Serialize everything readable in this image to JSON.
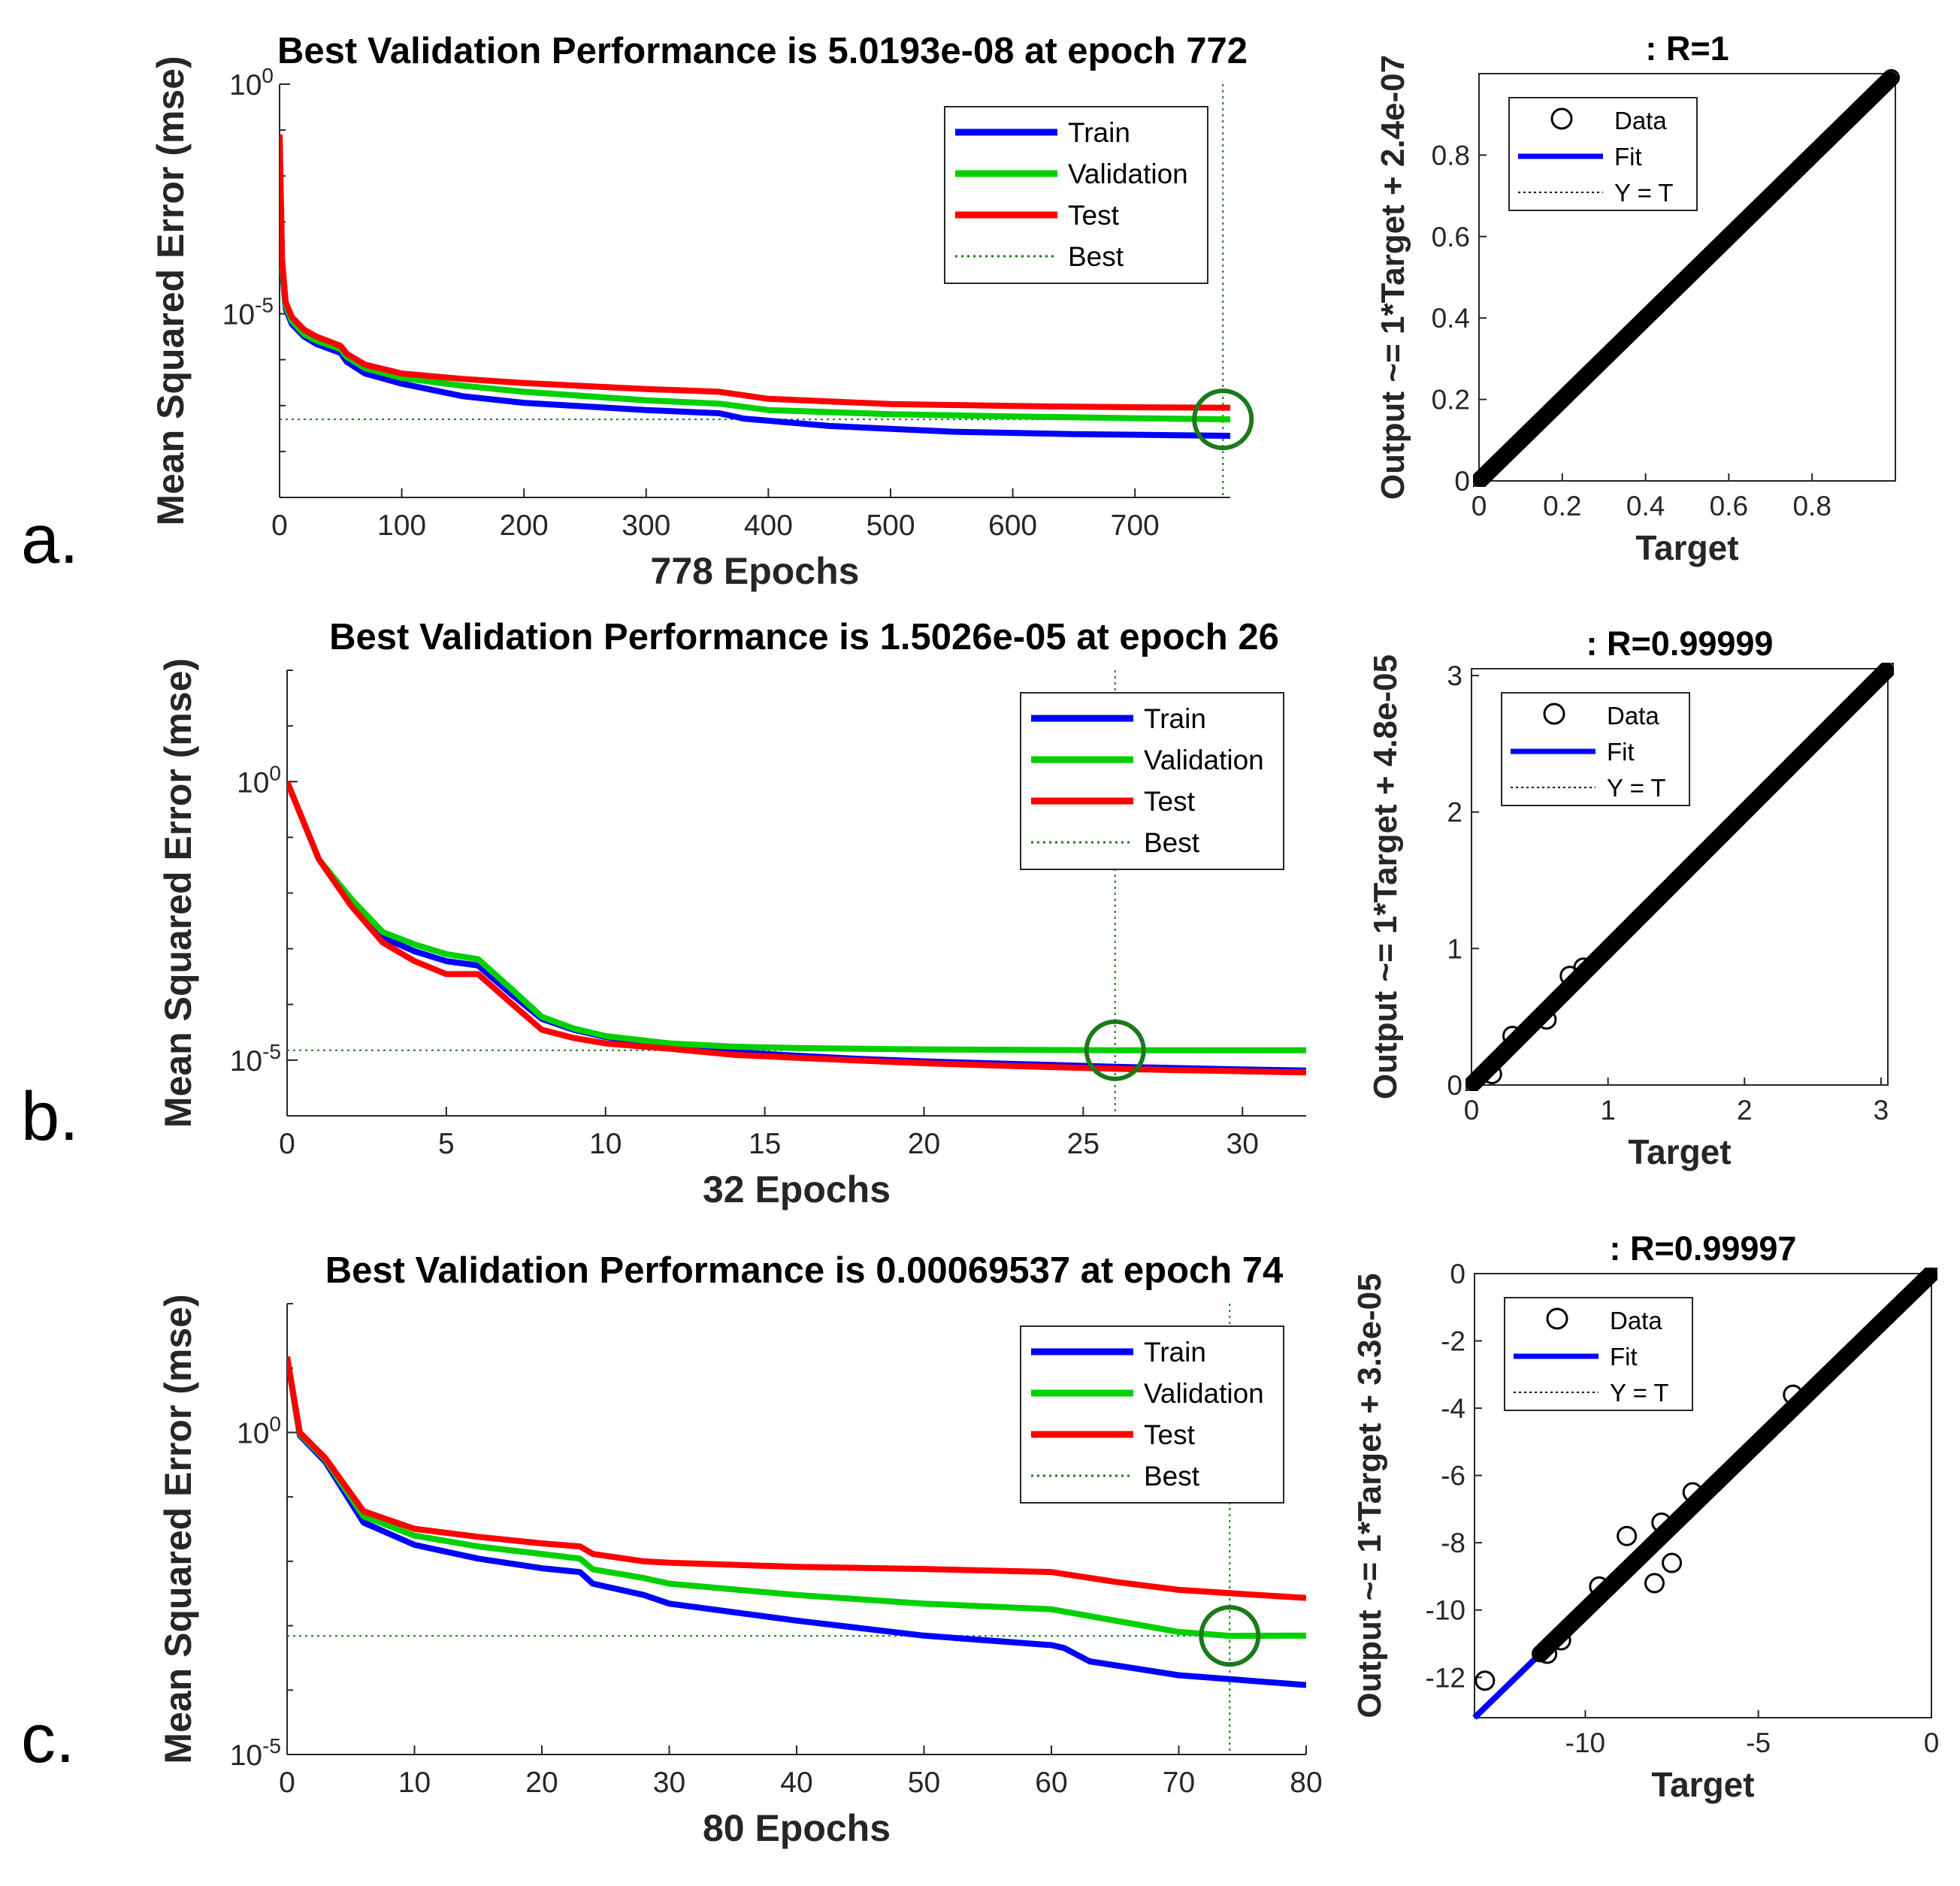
{
  "panel_labels": [
    "a.",
    "b.",
    "c."
  ],
  "chart_data": [
    {
      "type": "line",
      "title": "Best Validation Performance is 5.0193e-08 at epoch 772",
      "xlabel": "778 Epochs",
      "ylabel": "Mean Squared Error  (mse)",
      "yscale": "log",
      "xlim": [
        0,
        778
      ],
      "ylim": [
        1e-09,
        1
      ],
      "xticks": [
        0,
        100,
        200,
        300,
        400,
        500,
        600,
        700
      ],
      "yticks": [
        {
          "value": 1,
          "label": "10^0"
        },
        {
          "value": 1e-05,
          "label": "10^-5"
        }
      ],
      "legend_position": "top-right",
      "legend": [
        "Train",
        "Validation",
        "Test",
        "Best"
      ],
      "series": [
        {
          "name": "Train",
          "color": "#0000ff",
          "points": [
            [
              0,
              0.05
            ],
            [
              2,
              0.0001
            ],
            [
              5,
              1.3e-05
            ],
            [
              10,
              6e-06
            ],
            [
              20,
              3.2e-06
            ],
            [
              30,
              2.2e-06
            ],
            [
              50,
              1.4e-06
            ],
            [
              55,
              9e-07
            ],
            [
              70,
              5e-07
            ],
            [
              100,
              3e-07
            ],
            [
              150,
              1.6e-07
            ],
            [
              200,
              1.15e-07
            ],
            [
              300,
              8e-08
            ],
            [
              360,
              6.8e-08
            ],
            [
              380,
              5.2e-08
            ],
            [
              450,
              3.6e-08
            ],
            [
              550,
              2.7e-08
            ],
            [
              650,
              2.4e-08
            ],
            [
              778,
              2.2e-08
            ]
          ]
        },
        {
          "name": "Validation",
          "color": "#00d000",
          "points": [
            [
              0,
              0.06
            ],
            [
              2,
              0.00012
            ],
            [
              5,
              1.5e-05
            ],
            [
              10,
              7e-06
            ],
            [
              20,
              3.6e-06
            ],
            [
              30,
              2.6e-06
            ],
            [
              50,
              1.7e-06
            ],
            [
              55,
              1.15e-06
            ],
            [
              70,
              6.5e-07
            ],
            [
              100,
              4e-07
            ],
            [
              150,
              2.7e-07
            ],
            [
              200,
              2e-07
            ],
            [
              300,
              1.3e-07
            ],
            [
              360,
              1.1e-07
            ],
            [
              400,
              8e-08
            ],
            [
              500,
              6.5e-08
            ],
            [
              600,
              5.8e-08
            ],
            [
              700,
              5.3e-08
            ],
            [
              778,
              5.02e-08
            ]
          ]
        },
        {
          "name": "Test",
          "color": "#ff0000",
          "points": [
            [
              0,
              0.08
            ],
            [
              2,
              0.00015
            ],
            [
              5,
              1.8e-05
            ],
            [
              10,
              8.5e-06
            ],
            [
              20,
              4.5e-06
            ],
            [
              30,
              3.2e-06
            ],
            [
              50,
              2e-06
            ],
            [
              55,
              1.35e-06
            ],
            [
              70,
              7.8e-07
            ],
            [
              100,
              5e-07
            ],
            [
              150,
              3.8e-07
            ],
            [
              200,
              3.1e-07
            ],
            [
              300,
              2.3e-07
            ],
            [
              360,
              2e-07
            ],
            [
              400,
              1.4e-07
            ],
            [
              500,
              1.08e-07
            ],
            [
              600,
              9.8e-08
            ],
            [
              700,
              9.2e-08
            ],
            [
              778,
              9e-08
            ]
          ]
        }
      ],
      "best": {
        "epoch": 772,
        "value": 5.0193e-08
      }
    },
    {
      "type": "scatter",
      "title": ": R=1",
      "xlabel": "Target",
      "ylabel": "Output ~= 1*Target + 2.4e-07",
      "xlim": [
        0,
        1
      ],
      "ylim": [
        0,
        1
      ],
      "xticks": [
        0,
        0.2,
        0.4,
        0.6,
        0.8
      ],
      "xtick_labels": [
        "0",
        "0.2",
        "0.4",
        "0.6",
        "0.8"
      ],
      "yticks": [
        0,
        0.2,
        0.4,
        0.6,
        0.8
      ],
      "ytick_labels": [
        "0",
        "0.2",
        "0.4",
        "0.6",
        "0.8"
      ],
      "legend_position": "top-left",
      "legend": [
        "Data",
        "Fit",
        "Y = T"
      ],
      "fit": {
        "slope": 1,
        "intercept": 2.4e-07
      },
      "data_range": [
        0,
        0.99
      ],
      "outliers": []
    },
    {
      "type": "line",
      "title": "Best Validation Performance is 1.5026e-05 at epoch 26",
      "xlabel": "32 Epochs",
      "ylabel": "Mean Squared Error  (mse)",
      "yscale": "log",
      "xlim": [
        0,
        32
      ],
      "ylim": [
        1e-06,
        100
      ],
      "xticks": [
        0,
        5,
        10,
        15,
        20,
        25,
        30
      ],
      "yticks": [
        {
          "value": 1,
          "label": "10^0"
        },
        {
          "value": 1e-05,
          "label": "10^-5"
        }
      ],
      "legend_position": "top-right",
      "legend": [
        "Train",
        "Validation",
        "Test",
        "Best"
      ],
      "series": [
        {
          "name": "Train",
          "color": "#0000ff",
          "points": [
            [
              0,
              1
            ],
            [
              1,
              0.04
            ],
            [
              2,
              0.007
            ],
            [
              3,
              0.0016
            ],
            [
              4,
              0.0009
            ],
            [
              5,
              0.0006
            ],
            [
              6,
              0.0005
            ],
            [
              7,
              0.00016
            ],
            [
              8,
              5.5e-05
            ],
            [
              9,
              3.5e-05
            ],
            [
              10,
              2.6e-05
            ],
            [
              12,
              1.8e-05
            ],
            [
              14,
              1.4e-05
            ],
            [
              16,
              1.2e-05
            ],
            [
              18,
              1.05e-05
            ],
            [
              20,
              9.5e-06
            ],
            [
              22,
              8.8e-06
            ],
            [
              24,
              8.2e-06
            ],
            [
              26,
              7.6e-06
            ],
            [
              28,
              7.2e-06
            ],
            [
              30,
              6.8e-06
            ],
            [
              32,
              6.5e-06
            ]
          ]
        },
        {
          "name": "Validation",
          "color": "#00d000",
          "points": [
            [
              0,
              1
            ],
            [
              1,
              0.04
            ],
            [
              2,
              0.008
            ],
            [
              3,
              0.002
            ],
            [
              4,
              0.0012
            ],
            [
              5,
              0.0008
            ],
            [
              6,
              0.00065
            ],
            [
              7,
              0.0002
            ],
            [
              8,
              6e-05
            ],
            [
              9,
              3.7e-05
            ],
            [
              10,
              2.7e-05
            ],
            [
              12,
              2e-05
            ],
            [
              14,
              1.75e-05
            ],
            [
              16,
              1.65e-05
            ],
            [
              18,
              1.6e-05
            ],
            [
              20,
              1.56e-05
            ],
            [
              22,
              1.54e-05
            ],
            [
              24,
              1.52e-05
            ],
            [
              26,
              1.5026e-05
            ],
            [
              28,
              1.5e-05
            ],
            [
              30,
              1.5e-05
            ],
            [
              32,
              1.5e-05
            ]
          ]
        },
        {
          "name": "Test",
          "color": "#ff0000",
          "points": [
            [
              0,
              1
            ],
            [
              1,
              0.04
            ],
            [
              2,
              0.006
            ],
            [
              3,
              0.0013
            ],
            [
              4,
              0.0006
            ],
            [
              5,
              0.00035
            ],
            [
              6,
              0.00035
            ],
            [
              7,
              0.00011
            ],
            [
              8,
              3.5e-05
            ],
            [
              9,
              2.5e-05
            ],
            [
              10,
              2e-05
            ],
            [
              12,
              1.6e-05
            ],
            [
              14,
              1.25e-05
            ],
            [
              16,
              1.1e-05
            ],
            [
              18,
              9.8e-06
            ],
            [
              20,
              8.8e-06
            ],
            [
              22,
              8.1e-06
            ],
            [
              24,
              7.5e-06
            ],
            [
              26,
              7e-06
            ],
            [
              28,
              6.6e-06
            ],
            [
              30,
              6.3e-06
            ],
            [
              32,
              6e-06
            ]
          ]
        }
      ],
      "best": {
        "epoch": 26,
        "value": 1.5026e-05
      }
    },
    {
      "type": "scatter",
      "title": ": R=0.99999",
      "xlabel": "Target",
      "ylabel": "Output ~= 1*Target + 4.8e-05",
      "xlim": [
        0,
        3.05
      ],
      "ylim": [
        0,
        3.05
      ],
      "xticks": [
        0,
        1,
        2,
        3
      ],
      "xtick_labels": [
        "0",
        "1",
        "2",
        "3"
      ],
      "yticks": [
        0,
        1,
        2,
        3
      ],
      "ytick_labels": [
        "0",
        "1",
        "2",
        "3"
      ],
      "legend_position": "top-left",
      "legend": [
        "Data",
        "Fit",
        "Y = T"
      ],
      "fit": {
        "slope": 1,
        "intercept": 4.8e-05
      },
      "data_range": [
        0,
        3.05
      ],
      "outliers": [
        [
          0.15,
          0.08
        ],
        [
          0.3,
          0.36
        ],
        [
          0.55,
          0.48
        ],
        [
          0.72,
          0.8
        ],
        [
          0.82,
          0.86
        ]
      ]
    },
    {
      "type": "line",
      "title": "Best Validation Performance is 0.00069537 at epoch 74",
      "xlabel": "80 Epochs",
      "ylabel": "Mean Squared Error  (mse)",
      "yscale": "log",
      "xlim": [
        0,
        80
      ],
      "ylim": [
        1e-05,
        100
      ],
      "xticks": [
        0,
        10,
        20,
        30,
        40,
        50,
        60,
        70,
        80
      ],
      "yticks": [
        {
          "value": 1,
          "label": "10^0"
        },
        {
          "value": 1e-05,
          "label": "10^-5"
        }
      ],
      "legend_position": "top-right",
      "legend": [
        "Train",
        "Validation",
        "Test",
        "Best"
      ],
      "series": [
        {
          "name": "Train",
          "color": "#0000ff",
          "points": [
            [
              0,
              15
            ],
            [
              1,
              0.9
            ],
            [
              3,
              0.35
            ],
            [
              6,
              0.04
            ],
            [
              10,
              0.018
            ],
            [
              15,
              0.011
            ],
            [
              20,
              0.0078
            ],
            [
              23,
              0.0068
            ],
            [
              24,
              0.0045
            ],
            [
              28,
              0.003
            ],
            [
              30,
              0.0022
            ],
            [
              40,
              0.0012
            ],
            [
              50,
              0.0007
            ],
            [
              60,
              0.0005
            ],
            [
              61,
              0.00045
            ],
            [
              63,
              0.00028
            ],
            [
              70,
              0.00017
            ],
            [
              80,
              0.00012
            ]
          ]
        },
        {
          "name": "Validation",
          "color": "#00d000",
          "points": [
            [
              0,
              15
            ],
            [
              1,
              0.95
            ],
            [
              3,
              0.38
            ],
            [
              6,
              0.05
            ],
            [
              10,
              0.025
            ],
            [
              15,
              0.017
            ],
            [
              20,
              0.013
            ],
            [
              23,
              0.011
            ],
            [
              24,
              0.0075
            ],
            [
              28,
              0.0055
            ],
            [
              30,
              0.0045
            ],
            [
              40,
              0.003
            ],
            [
              50,
              0.0022
            ],
            [
              60,
              0.0018
            ],
            [
              65,
              0.0012
            ],
            [
              70,
              0.0008
            ],
            [
              74,
              0.00069537
            ],
            [
              80,
              0.0007
            ]
          ]
        },
        {
          "name": "Test",
          "color": "#ff0000",
          "points": [
            [
              0,
              15
            ],
            [
              1,
              1.0
            ],
            [
              3,
              0.4
            ],
            [
              6,
              0.06
            ],
            [
              10,
              0.032
            ],
            [
              15,
              0.024
            ],
            [
              20,
              0.019
            ],
            [
              23,
              0.017
            ],
            [
              24,
              0.013
            ],
            [
              28,
              0.01
            ],
            [
              30,
              0.0095
            ],
            [
              40,
              0.0082
            ],
            [
              50,
              0.0076
            ],
            [
              60,
              0.0068
            ],
            [
              65,
              0.0048
            ],
            [
              70,
              0.0036
            ],
            [
              74,
              0.0032
            ],
            [
              80,
              0.0027
            ]
          ]
        }
      ],
      "best": {
        "epoch": 74,
        "value": 0.00069537
      }
    },
    {
      "type": "scatter",
      "title": ": R=0.99997",
      "xlabel": "Target",
      "ylabel": "Output ~= 1*Target + 3.3e-05",
      "xlim": [
        -13.2,
        0
      ],
      "ylim": [
        -13.2,
        0
      ],
      "xticks": [
        -10,
        -5,
        0
      ],
      "xtick_labels": [
        "-10",
        "-5",
        "0"
      ],
      "yticks": [
        -12,
        -10,
        -8,
        -6,
        -4,
        -2,
        0
      ],
      "ytick_labels": [
        "-12",
        "-10",
        "-8",
        "-6",
        "-4",
        "-2",
        "0"
      ],
      "legend_position": "top-left",
      "legend": [
        "Data",
        "Fit",
        "Y = T"
      ],
      "fit": {
        "slope": 1,
        "intercept": 3.3e-05
      },
      "data_range": [
        -11.3,
        0
      ],
      "outliers": [
        [
          -12.9,
          -12.1
        ],
        [
          -8.8,
          -7.8
        ],
        [
          -8.0,
          -9.2
        ],
        [
          -7.5,
          -8.6
        ],
        [
          -11.1,
          -11.3
        ],
        [
          -10.7,
          -10.9
        ],
        [
          -9.6,
          -9.3
        ],
        [
          -4.0,
          -3.6
        ],
        [
          -6.9,
          -6.5
        ],
        [
          -7.8,
          -7.4
        ]
      ]
    }
  ]
}
